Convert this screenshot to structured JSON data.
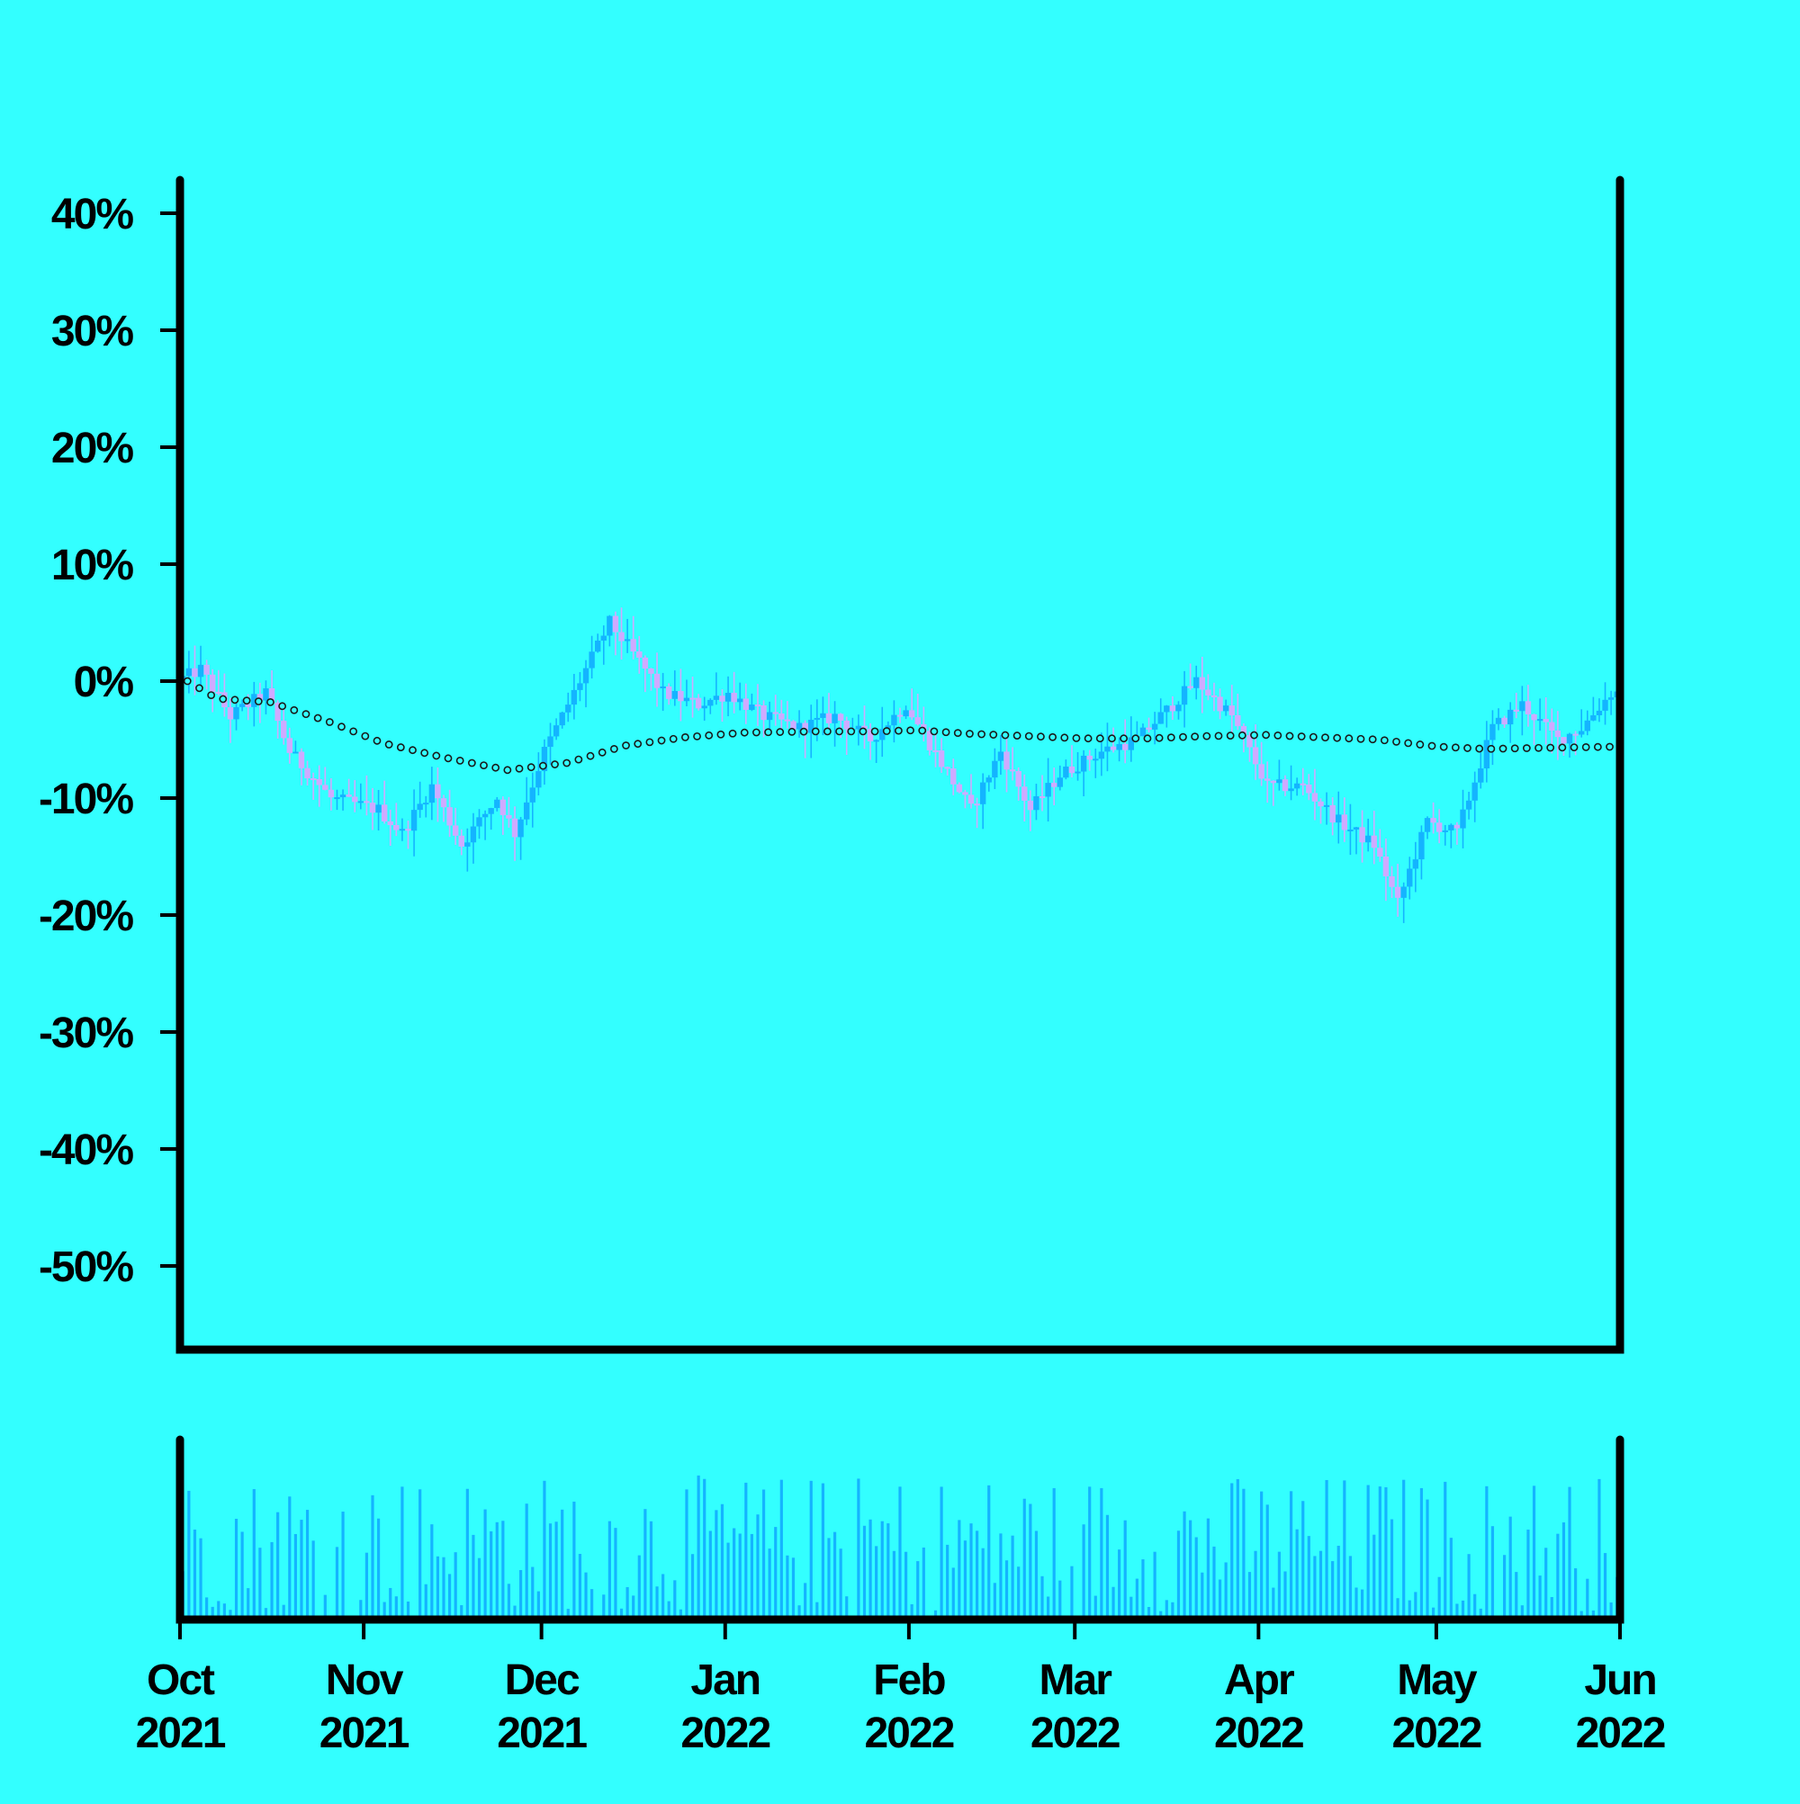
{
  "colors": {
    "background": "#33ffff",
    "axis": "#000000",
    "candle_up": "#14b4ff",
    "candle_down": "#cfaaff",
    "volume": "#14b4ff",
    "ma_marker_fill": "#33ffff",
    "ma_marker_stroke": "#1a1a1a"
  },
  "chart_data": [
    {
      "type": "candlestick",
      "title": "",
      "xlabel": "",
      "ylabel": "",
      "ylim": [
        -57,
        43
      ],
      "y_ticks": [
        {
          "value": 40,
          "label": "40%"
        },
        {
          "value": 30,
          "label": "30%"
        },
        {
          "value": 20,
          "label": "20%"
        },
        {
          "value": 10,
          "label": "10%"
        },
        {
          "value": 0,
          "label": "0%"
        },
        {
          "value": -10,
          "label": "-10%"
        },
        {
          "value": -20,
          "label": "-20%"
        },
        {
          "value": -30,
          "label": "-30%"
        },
        {
          "value": -40,
          "label": "-40%"
        },
        {
          "value": -50,
          "label": "-50%"
        }
      ],
      "x_range": [
        "2021-10-01",
        "2022-06-01"
      ],
      "x_ticks": [
        {
          "date": "2021-10-01",
          "month": "Oct",
          "year": "2021"
        },
        {
          "date": "2021-11-01",
          "month": "Nov",
          "year": "2021"
        },
        {
          "date": "2021-12-01",
          "month": "Dec",
          "year": "2021"
        },
        {
          "date": "2022-01-01",
          "month": "Jan",
          "year": "2022"
        },
        {
          "date": "2022-02-01",
          "month": "Feb",
          "year": "2022"
        },
        {
          "date": "2022-03-01",
          "month": "Mar",
          "year": "2022"
        },
        {
          "date": "2022-04-01",
          "month": "Apr",
          "year": "2022"
        },
        {
          "date": "2022-05-01",
          "month": "May",
          "year": "2022"
        },
        {
          "date": "2022-06-01",
          "month": "Jun",
          "year": "2022"
        }
      ],
      "close_path": [
        [
          "2021-10-01",
          0
        ],
        [
          "2021-10-05",
          1
        ],
        [
          "2021-10-10",
          -3
        ],
        [
          "2021-10-16",
          -1
        ],
        [
          "2021-10-20",
          -6
        ],
        [
          "2021-10-27",
          -10
        ],
        [
          "2021-11-04",
          -11
        ],
        [
          "2021-11-08",
          -13
        ],
        [
          "2021-11-13",
          -9
        ],
        [
          "2021-11-18",
          -14
        ],
        [
          "2021-11-24",
          -10
        ],
        [
          "2021-11-27",
          -13
        ],
        [
          "2021-12-02",
          -6
        ],
        [
          "2021-12-07",
          -1
        ],
        [
          "2021-12-13",
          5
        ],
        [
          "2021-12-16",
          3
        ],
        [
          "2021-12-22",
          -1
        ],
        [
          "2021-12-28",
          -2
        ],
        [
          "2022-01-02",
          -1
        ],
        [
          "2022-01-08",
          -3
        ],
        [
          "2022-01-14",
          -4
        ],
        [
          "2022-01-20",
          -3
        ],
        [
          "2022-01-26",
          -5
        ],
        [
          "2022-02-01",
          -2
        ],
        [
          "2022-02-07",
          -7
        ],
        [
          "2022-02-12",
          -11
        ],
        [
          "2022-02-17",
          -6
        ],
        [
          "2022-02-22",
          -11
        ],
        [
          "2022-02-27",
          -8
        ],
        [
          "2022-03-06",
          -6
        ],
        [
          "2022-03-12",
          -5
        ],
        [
          "2022-03-18",
          -2
        ],
        [
          "2022-03-22",
          0
        ],
        [
          "2022-03-28",
          -3
        ],
        [
          "2022-04-03",
          -9
        ],
        [
          "2022-04-09",
          -9
        ],
        [
          "2022-04-15",
          -12
        ],
        [
          "2022-04-21",
          -14
        ],
        [
          "2022-04-25",
          -19
        ],
        [
          "2022-04-30",
          -12
        ],
        [
          "2022-05-05",
          -13
        ],
        [
          "2022-05-11",
          -4
        ],
        [
          "2022-05-16",
          -2
        ],
        [
          "2022-05-22",
          -5
        ],
        [
          "2022-05-26",
          -4
        ],
        [
          "2022-05-31",
          -1
        ]
      ],
      "moving_average": [
        [
          "2021-10-01",
          0
        ],
        [
          "2021-10-06",
          -1.5
        ],
        [
          "2021-10-15",
          -1.8
        ],
        [
          "2021-10-25",
          -3.5
        ],
        [
          "2021-11-03",
          -5.3
        ],
        [
          "2021-11-13",
          -6.5
        ],
        [
          "2021-11-24",
          -7.6
        ],
        [
          "2021-12-04",
          -7
        ],
        [
          "2021-12-14",
          -5.5
        ],
        [
          "2021-12-24",
          -4.8
        ],
        [
          "2022-01-03",
          -4.4
        ],
        [
          "2022-01-15",
          -4.3
        ],
        [
          "2022-01-25",
          -4.3
        ],
        [
          "2022-02-01",
          -4.2
        ],
        [
          "2022-02-10",
          -4.5
        ],
        [
          "2022-02-20",
          -4.7
        ],
        [
          "2022-03-01",
          -4.9
        ],
        [
          "2022-03-12",
          -4.9
        ],
        [
          "2022-03-22",
          -4.7
        ],
        [
          "2022-04-01",
          -4.6
        ],
        [
          "2022-04-10",
          -4.8
        ],
        [
          "2022-04-20",
          -5
        ],
        [
          "2022-04-30",
          -5.6
        ],
        [
          "2022-05-08",
          -5.8
        ],
        [
          "2022-05-18",
          -5.7
        ],
        [
          "2022-05-31",
          -5.6
        ]
      ]
    },
    {
      "type": "bar",
      "title": "",
      "xlabel": "",
      "ylabel": "",
      "series_name": "",
      "x_range": [
        "2021-10-01",
        "2022-06-01"
      ],
      "ylim": [
        0,
        1.12
      ],
      "values_note": ""
    }
  ]
}
